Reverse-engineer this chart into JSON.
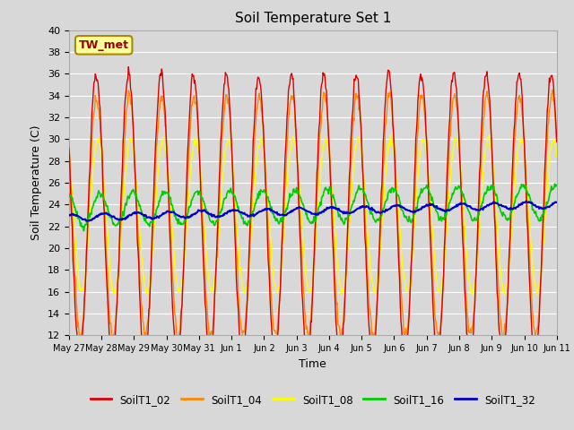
{
  "title": "Soil Temperature Set 1",
  "xlabel": "Time",
  "ylabel": "Soil Temperature (C)",
  "ylim": [
    12,
    40
  ],
  "yticks": [
    12,
    14,
    16,
    18,
    20,
    22,
    24,
    26,
    28,
    30,
    32,
    34,
    36,
    38,
    40
  ],
  "bg_color": "#d8d8d8",
  "series_colors": {
    "SoilT1_02": "#dd0000",
    "SoilT1_04": "#ff8800",
    "SoilT1_08": "#ffff00",
    "SoilT1_16": "#00cc00",
    "SoilT1_32": "#0000cc"
  },
  "annotation_text": "TW_met",
  "annotation_fg": "#990000",
  "annotation_bg": "#ffff99",
  "annotation_border": "#aa8800",
  "num_days": 15,
  "tick_labels": [
    "May 27",
    "May 28",
    "May 29",
    "May 30",
    "May 31",
    "Jun 1",
    "Jun 2",
    "Jun 3",
    "Jun 4",
    "Jun 5",
    "Jun 6",
    "Jun 7",
    "Jun 8",
    "Jun 9",
    "Jun 10",
    "Jun 11"
  ]
}
